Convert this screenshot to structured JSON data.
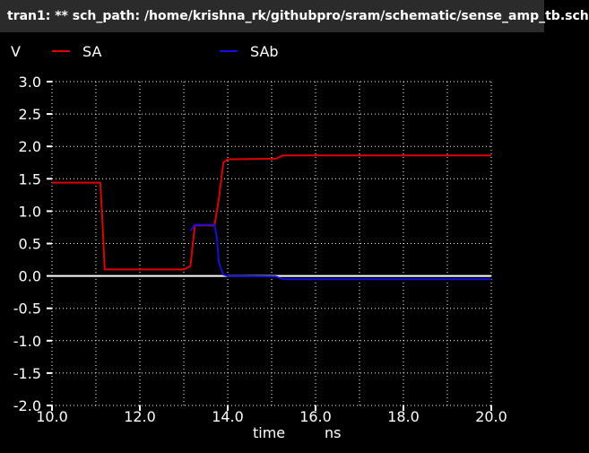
{
  "window": {
    "title": "tran1: ** sch_path: /home/krishna_rk/githubpro/sram/schematic/sense_amp_tb.sch"
  },
  "chart_data": {
    "type": "line",
    "title": "",
    "xlabel": "time",
    "xunit": "ns",
    "ylabel": "V",
    "xlim": [
      10.0,
      20.0
    ],
    "ylim": [
      -2.0,
      3.0
    ],
    "xticks": [
      "10.0",
      "12.0",
      "14.0",
      "16.0",
      "18.0",
      "20.0"
    ],
    "xtick_values": [
      10,
      12,
      14,
      16,
      18,
      20
    ],
    "yticks": [
      "3.0",
      "2.5",
      "2.0",
      "1.5",
      "1.0",
      "0.5",
      "0.0",
      "-0.5",
      "-1.0",
      "-1.5",
      "-2.0"
    ],
    "ytick_values": [
      3.0,
      2.5,
      2.0,
      1.5,
      1.0,
      0.5,
      0.0,
      -0.5,
      -1.0,
      -1.5,
      -2.0
    ],
    "grid": true,
    "legend_position": "top",
    "background_color": "#000000",
    "series": [
      {
        "name": "SA",
        "color": "#e00000",
        "x": [
          10.0,
          11.1,
          11.15,
          11.2,
          13.0,
          13.15,
          13.25,
          13.7,
          13.8,
          13.9,
          14.0,
          15.1,
          15.25,
          20.0
        ],
        "y": [
          1.44,
          1.44,
          0.8,
          0.1,
          0.1,
          0.15,
          0.78,
          0.78,
          1.2,
          1.75,
          1.8,
          1.81,
          1.86,
          1.86
        ]
      },
      {
        "name": "SAb",
        "color": "#1010e0",
        "x": [
          13.15,
          13.25,
          13.7,
          13.75,
          13.8,
          13.9,
          14.0,
          15.1,
          15.25,
          20.0
        ],
        "y": [
          0.7,
          0.79,
          0.79,
          0.6,
          0.2,
          0.02,
          0.0,
          -0.01,
          -0.05,
          -0.05
        ]
      }
    ]
  }
}
